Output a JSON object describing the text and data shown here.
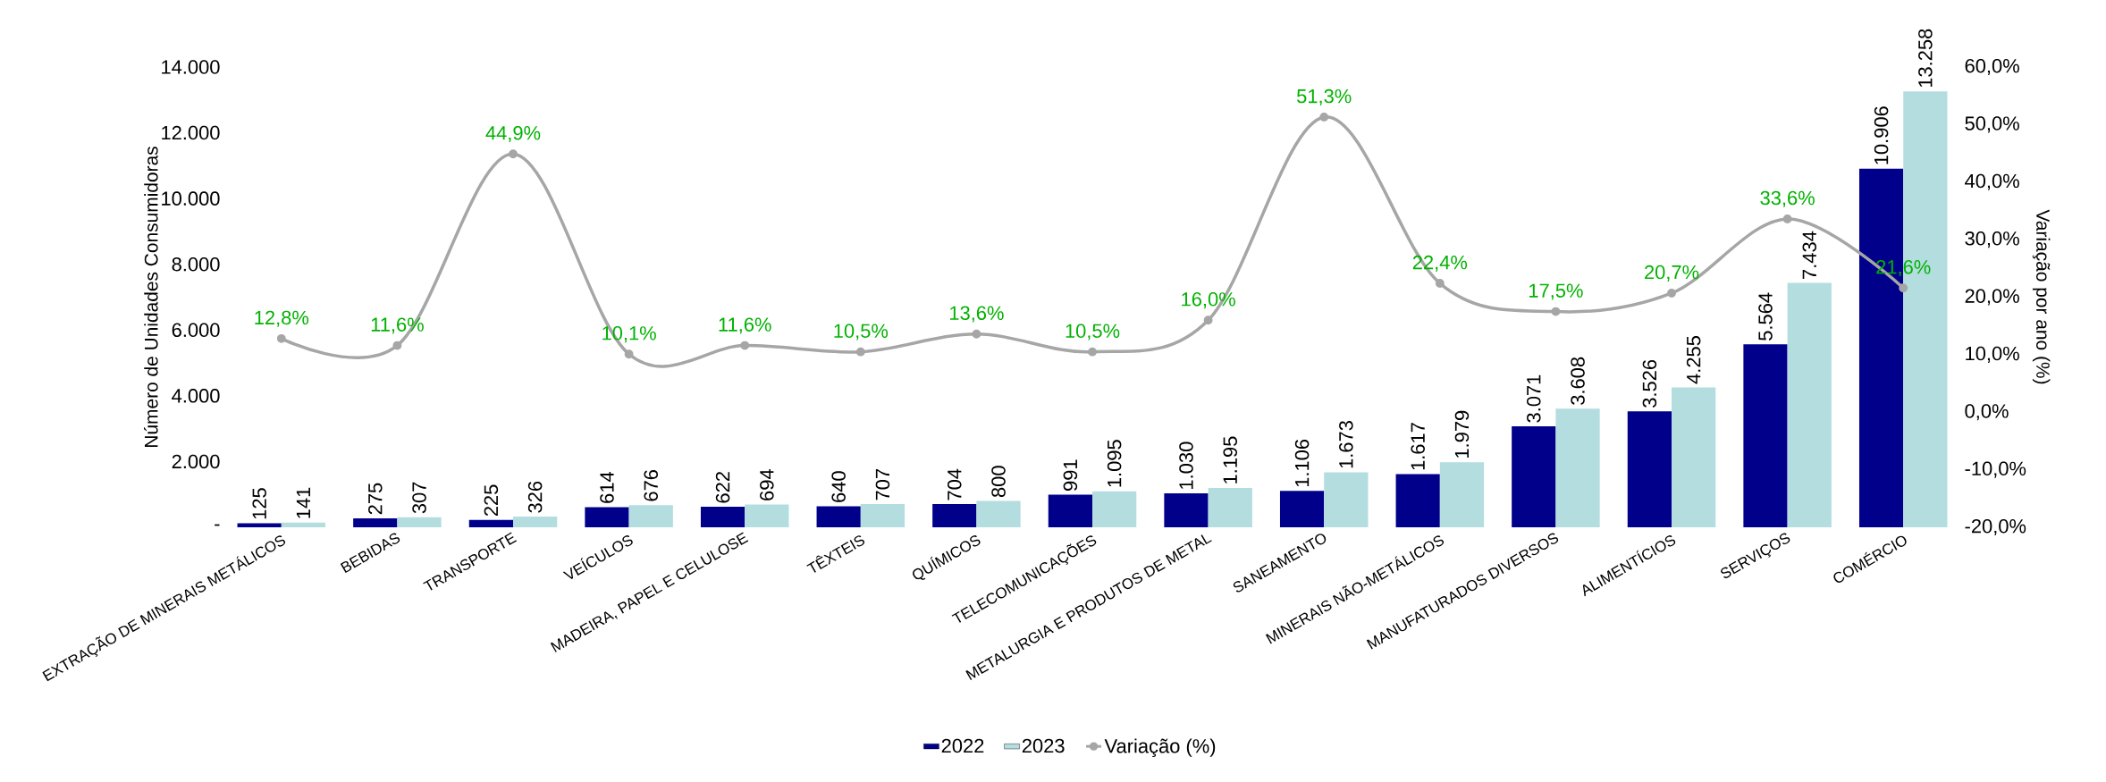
{
  "chart_data": {
    "type": "bar",
    "categories": [
      "EXTRAÇÃO DE MINERAIS METÁLICOS",
      "BEBIDAS",
      "TRANSPORTE",
      "VEÍCULOS",
      "MADEIRA, PAPEL E CELULOSE",
      "TÊXTEIS",
      "QUÍMICOS",
      "TELECOMUNICAÇÕES",
      "METALURGIA E PRODUTOS DE METAL",
      "SANEAMENTO",
      "MINERAIS NÃO-METÁLICOS",
      "MANUFATURADOS DIVERSOS",
      "ALIMENTÍCIOS",
      "SERVIÇOS",
      "COMÉRCIO"
    ],
    "ylabel": "Número de Unidades Consumidoras",
    "y2label": "Variação por ano (%)",
    "ylim": [
      0,
      14000
    ],
    "yticks": [
      {
        "value": 0,
        "label": "-"
      },
      {
        "value": 2000,
        "label": "2.000"
      },
      {
        "value": 4000,
        "label": "4.000"
      },
      {
        "value": 6000,
        "label": "6.000"
      },
      {
        "value": 8000,
        "label": "8.000"
      },
      {
        "value": 10000,
        "label": "10.000"
      },
      {
        "value": 12000,
        "label": "12.000"
      },
      {
        "value": 14000,
        "label": "14.000"
      }
    ],
    "y2lim": [
      -20,
      60
    ],
    "y2ticks": [
      {
        "value": -20,
        "label": "-20,0%"
      },
      {
        "value": -10,
        "label": "-10,0%"
      },
      {
        "value": 0,
        "label": "0,0%"
      },
      {
        "value": 10,
        "label": "10,0%"
      },
      {
        "value": 20,
        "label": "20,0%"
      },
      {
        "value": 30,
        "label": "30,0%"
      },
      {
        "value": 40,
        "label": "40,0%"
      },
      {
        "value": 50,
        "label": "50,0%"
      },
      {
        "value": 60,
        "label": "60,0%"
      }
    ],
    "legend": "bottom",
    "grid": false,
    "series": [
      {
        "name": "2022",
        "color": "#00008b",
        "values": [
          125,
          275,
          225,
          614,
          622,
          640,
          704,
          991,
          1030,
          1106,
          1617,
          3071,
          3526,
          5564,
          10906
        ],
        "value_labels": [
          "125",
          "275",
          "225",
          "614",
          "622",
          "640",
          "704",
          "991",
          "1.030",
          "1.106",
          "1.617",
          "3.071",
          "3.526",
          "5.564",
          "10.906"
        ]
      },
      {
        "name": "2023",
        "color": "#b4dde0",
        "values": [
          141,
          307,
          326,
          676,
          694,
          707,
          800,
          1095,
          1195,
          1673,
          1979,
          3608,
          4255,
          7434,
          13258
        ],
        "value_labels": [
          "141",
          "307",
          "326",
          "676",
          "694",
          "707",
          "800",
          "1.095",
          "1.195",
          "1.673",
          "1.979",
          "3.608",
          "4.255",
          "7.434",
          "13.258"
        ]
      },
      {
        "name": "Variação (%)",
        "type": "line",
        "axis": "y2",
        "color": "#a6a6a6",
        "marker": "circle",
        "line_style": "solid",
        "values": [
          12.8,
          11.6,
          44.9,
          10.1,
          11.6,
          10.5,
          13.6,
          10.5,
          16.0,
          51.3,
          22.4,
          17.5,
          20.7,
          33.6,
          21.6
        ],
        "value_labels": [
          "12,8%",
          "11,6%",
          "44,9%",
          "10,1%",
          "11,6%",
          "10,5%",
          "13,6%",
          "10,5%",
          "16,0%",
          "51,3%",
          "22,4%",
          "17,5%",
          "20,7%",
          "33,6%",
          "21,6%"
        ]
      }
    ]
  }
}
